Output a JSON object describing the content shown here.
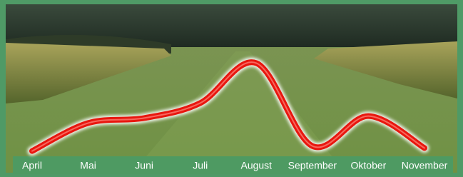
{
  "chart_data": {
    "type": "line",
    "categories": [
      "April",
      "Mai",
      "Juni",
      "Juli",
      "August",
      "September",
      "Oktober",
      "November"
    ],
    "values": [
      6,
      34,
      39,
      54,
      94,
      11,
      41,
      9
    ],
    "color": "#e8170f",
    "ylim": [
      0,
      100
    ]
  }
}
